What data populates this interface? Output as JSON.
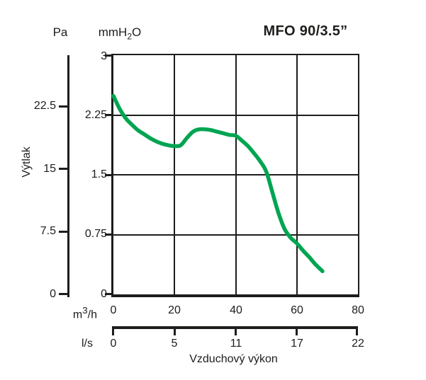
{
  "title": "MFO 90/3.5”",
  "labels": {
    "pa_unit": "Pa",
    "mmh2o_unit": {
      "base": "mmH",
      "sub": "2",
      "tail": "O"
    },
    "m3h_unit": {
      "base": "m",
      "sup": "3",
      "tail": "/h"
    },
    "ls_unit": "l/s",
    "y_title": "Výtlak",
    "x_title": "Vzduchový výkon"
  },
  "axes": {
    "pa_ticks": [
      "22.5",
      "15",
      "7.5",
      "0"
    ],
    "mmh2o_ticks": [
      "3",
      "2.25",
      "1.5",
      "0.75",
      "0"
    ],
    "m3h_ticks": [
      "0",
      "20",
      "40",
      "60",
      "80"
    ],
    "ls_ticks": [
      "0",
      "5",
      "11",
      "17",
      "22"
    ]
  },
  "colors": {
    "curve": "#00a551",
    "ink": "#1d1d1b",
    "background": "#ffffff"
  },
  "chart_data": {
    "type": "line",
    "title": "MFO 90/3.5”",
    "xlabel": "Vzduchový výkon",
    "ylabel": "Výtlak",
    "grid": true,
    "legend": false,
    "x_axes": [
      {
        "unit": "m³/h",
        "ticks": [
          0,
          20,
          40,
          60,
          80
        ],
        "range": [
          0,
          80
        ]
      },
      {
        "unit": "l/s",
        "ticks": [
          0,
          5,
          11,
          17,
          22
        ],
        "range": [
          0,
          22.2
        ]
      }
    ],
    "y_axes": [
      {
        "unit": "mmH₂O",
        "ticks": [
          0,
          0.75,
          1.5,
          2.25,
          3
        ],
        "range": [
          0,
          3
        ]
      },
      {
        "unit": "Pa",
        "ticks": [
          0,
          7.5,
          15,
          22.5
        ],
        "range": [
          0,
          28.6
        ]
      }
    ],
    "series": [
      {
        "name": "MFO 90/3.5”",
        "color": "#00a551",
        "x_unit": "m³/h",
        "y_unit": "mmH₂O",
        "points": [
          [
            0,
            2.49
          ],
          [
            2,
            2.33
          ],
          [
            4,
            2.21
          ],
          [
            6,
            2.13
          ],
          [
            8,
            2.06
          ],
          [
            10,
            2.01
          ],
          [
            12,
            1.96
          ],
          [
            14,
            1.92
          ],
          [
            16,
            1.89
          ],
          [
            18,
            1.87
          ],
          [
            20,
            1.86
          ],
          [
            22,
            1.87
          ],
          [
            24,
            1.96
          ],
          [
            26,
            2.04
          ],
          [
            28,
            2.07
          ],
          [
            30,
            2.07
          ],
          [
            32,
            2.06
          ],
          [
            34,
            2.04
          ],
          [
            36,
            2.02
          ],
          [
            38,
            2.0
          ],
          [
            40,
            1.99
          ],
          [
            42,
            1.93
          ],
          [
            44,
            1.86
          ],
          [
            46,
            1.77
          ],
          [
            48,
            1.67
          ],
          [
            50,
            1.54
          ],
          [
            52,
            1.28
          ],
          [
            54,
            1.02
          ],
          [
            56,
            0.82
          ],
          [
            58,
            0.71
          ],
          [
            60,
            0.64
          ],
          [
            62,
            0.55
          ],
          [
            64,
            0.47
          ],
          [
            66,
            0.38
          ],
          [
            68.4,
            0.29
          ]
        ]
      }
    ]
  }
}
